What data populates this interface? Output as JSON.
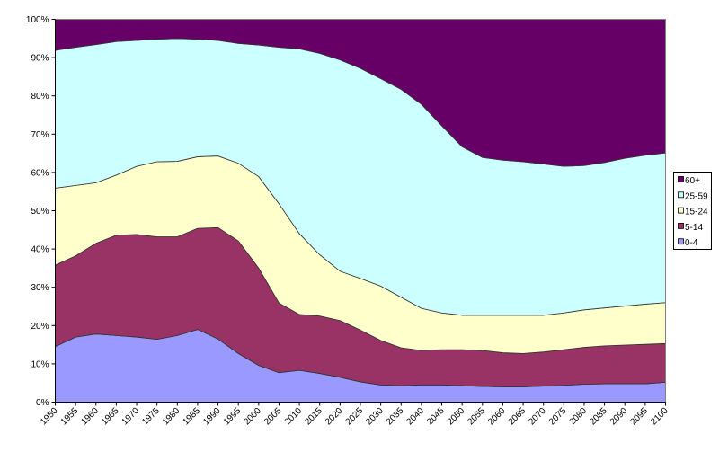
{
  "chart_data": {
    "type": "area",
    "stacked": "percent",
    "title": "",
    "xlabel": "",
    "ylabel": "",
    "ylim": [
      0,
      100
    ],
    "y_ticks": [
      "0%",
      "10%",
      "20%",
      "30%",
      "40%",
      "50%",
      "60%",
      "70%",
      "80%",
      "90%",
      "100%"
    ],
    "grid": false,
    "legend_position": "right",
    "x": [
      "1950",
      "1955",
      "1960",
      "1965",
      "1970",
      "1975",
      "1980",
      "1985",
      "1990",
      "1995",
      "2000",
      "2005",
      "2010",
      "2015",
      "2020",
      "2025",
      "2030",
      "2035",
      "2040",
      "2045",
      "2050",
      "2055",
      "2060",
      "2065",
      "2070",
      "2075",
      "2080",
      "2085",
      "2090",
      "2095",
      "2100"
    ],
    "series": [
      {
        "name": "0-4",
        "color": "#9999FF",
        "values": [
          14.5,
          17.0,
          17.8,
          17.4,
          17.0,
          16.4,
          17.4,
          19.0,
          16.5,
          12.7,
          9.6,
          7.7,
          8.3,
          7.5,
          6.5,
          5.3,
          4.5,
          4.3,
          4.5,
          4.5,
          4.3,
          4.1,
          4.0,
          4.0,
          4.2,
          4.4,
          4.7,
          4.8,
          4.8,
          4.8,
          5.2
        ]
      },
      {
        "name": "5-14",
        "color": "#993366",
        "values": [
          21.3,
          21.2,
          23.7,
          26.2,
          26.8,
          26.8,
          25.8,
          26.4,
          29.1,
          29.4,
          25.4,
          18.2,
          14.6,
          15.0,
          14.8,
          13.5,
          11.6,
          9.9,
          9.0,
          9.2,
          9.4,
          9.4,
          8.9,
          8.7,
          8.9,
          9.3,
          9.6,
          9.9,
          10.1,
          10.3,
          10.1
        ]
      },
      {
        "name": "15-24",
        "color": "#FFFFCC",
        "values": [
          20.1,
          18.4,
          15.8,
          15.7,
          17.8,
          19.6,
          19.7,
          18.7,
          18.7,
          20.3,
          23.9,
          25.9,
          21.1,
          16.0,
          12.9,
          13.5,
          14.2,
          13.2,
          11.0,
          9.6,
          9.0,
          9.2,
          9.8,
          10.0,
          9.6,
          9.6,
          9.8,
          9.9,
          10.2,
          10.5,
          10.7
        ]
      },
      {
        "name": "25-59",
        "color": "#CCFFFF",
        "values": [
          36.0,
          36.1,
          36.1,
          34.9,
          32.9,
          32.0,
          32.1,
          30.7,
          30.2,
          31.3,
          34.4,
          40.9,
          48.3,
          52.6,
          55.2,
          54.9,
          54.2,
          54.3,
          53.3,
          48.9,
          44.0,
          41.2,
          40.5,
          40.1,
          39.5,
          38.3,
          37.7,
          38.0,
          38.6,
          38.9,
          39.1
        ]
      },
      {
        "name": "60+",
        "color": "#660066",
        "values": [
          8.1,
          7.3,
          6.6,
          5.8,
          5.5,
          5.2,
          5.0,
          5.2,
          5.5,
          6.3,
          6.7,
          7.3,
          7.7,
          8.9,
          10.6,
          12.8,
          15.5,
          18.3,
          22.2,
          27.8,
          33.3,
          36.1,
          36.8,
          37.2,
          37.8,
          38.4,
          38.2,
          37.4,
          36.3,
          35.5,
          34.9
        ]
      }
    ]
  }
}
